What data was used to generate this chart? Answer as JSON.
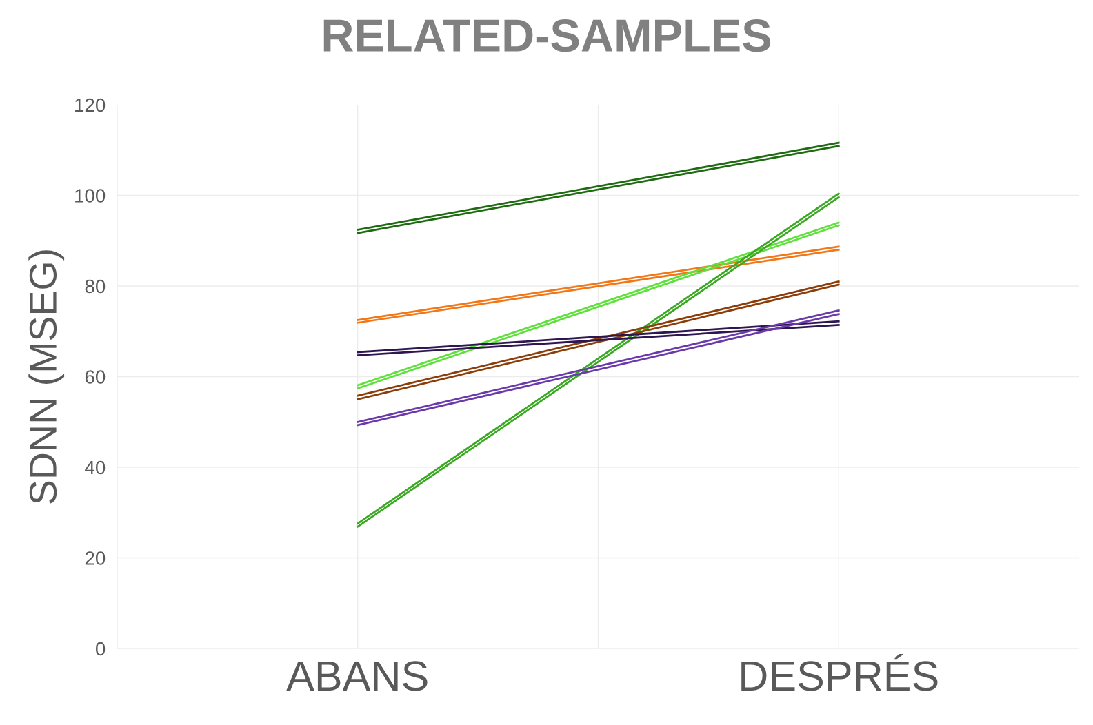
{
  "chart_data": {
    "type": "line",
    "title": "RELATED-SAMPLES",
    "ylabel": "SDNN (MSEG)",
    "categories": [
      "ABANS",
      "DESPRÉS"
    ],
    "series": [
      {
        "color": "#1e6b12",
        "values": [
          92.4,
          111.6
        ]
      },
      {
        "color": "#1e6b12",
        "values": [
          91.7,
          110.9
        ]
      },
      {
        "color": "#f07818",
        "values": [
          72.5,
          88.7
        ]
      },
      {
        "color": "#f07818",
        "values": [
          71.9,
          88.0
        ]
      },
      {
        "color": "#5fe03c",
        "values": [
          58.1,
          94.0
        ]
      },
      {
        "color": "#5fe03c",
        "values": [
          57.4,
          93.4
        ]
      },
      {
        "color": "#3aa822",
        "values": [
          27.6,
          100.4
        ]
      },
      {
        "color": "#3aa822",
        "values": [
          26.9,
          99.6
        ]
      },
      {
        "color": "#8b3e0a",
        "values": [
          55.8,
          81.0
        ]
      },
      {
        "color": "#8b3e0a",
        "values": [
          55.0,
          80.3
        ]
      },
      {
        "color": "#2e1650",
        "values": [
          65.4,
          72.2
        ]
      },
      {
        "color": "#2e1650",
        "values": [
          64.7,
          71.4
        ]
      },
      {
        "color": "#6a3aaa",
        "values": [
          50.0,
          74.6
        ]
      },
      {
        "color": "#6a3aaa",
        "values": [
          49.3,
          73.8
        ]
      }
    ],
    "ylim": [
      0,
      120
    ],
    "yticks": [
      0,
      20,
      40,
      60,
      80,
      100,
      120
    ],
    "grid": true,
    "legend": false,
    "marker": "none",
    "line_style": "solid"
  }
}
